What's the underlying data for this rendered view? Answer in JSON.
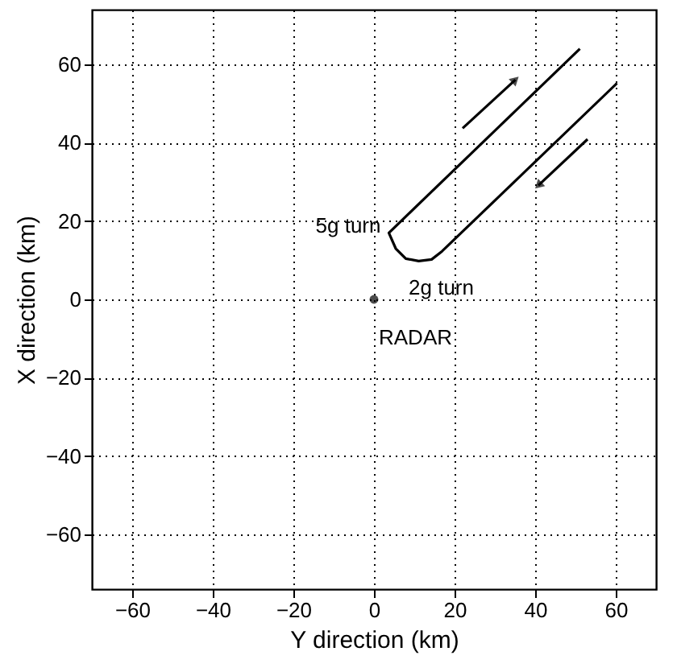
{
  "chart_data": {
    "type": "line",
    "xlabel": "Y direction (km)",
    "ylabel": "X direction (km)",
    "xlim": [
      -70,
      70
    ],
    "ylim": [
      -74,
      74
    ],
    "xticks": [
      -60,
      -40,
      -20,
      0,
      20,
      40,
      60
    ],
    "yticks": [
      -60,
      -40,
      -20,
      0,
      20,
      40,
      60
    ],
    "grid": true,
    "series": [
      {
        "color": "#000000",
        "x": [
          51.1,
          3.7,
          5.4,
          7.9,
          11.1,
          14.3,
          16.9,
          60.3
        ],
        "values": [
          64,
          17,
          13,
          10.4,
          9.8,
          10.2,
          12.3,
          55.2
        ]
      },
      {
        "type": "line",
        "color": "#000000",
        "x": [
          22,
          35.1
        ],
        "values": [
          43.7,
          56.1
        ]
      },
      {
        "type": "line",
        "color": "#000000",
        "x": [
          53,
          40.8
        ],
        "values": [
          40.9,
          29.1
        ]
      },
      {
        "type": "scatter",
        "color": "#000000",
        "marker": "circle",
        "x": [
          0
        ],
        "values": [
          0
        ]
      }
    ],
    "annotations": [
      "5g turn",
      "2g turn",
      "RADAR"
    ]
  }
}
